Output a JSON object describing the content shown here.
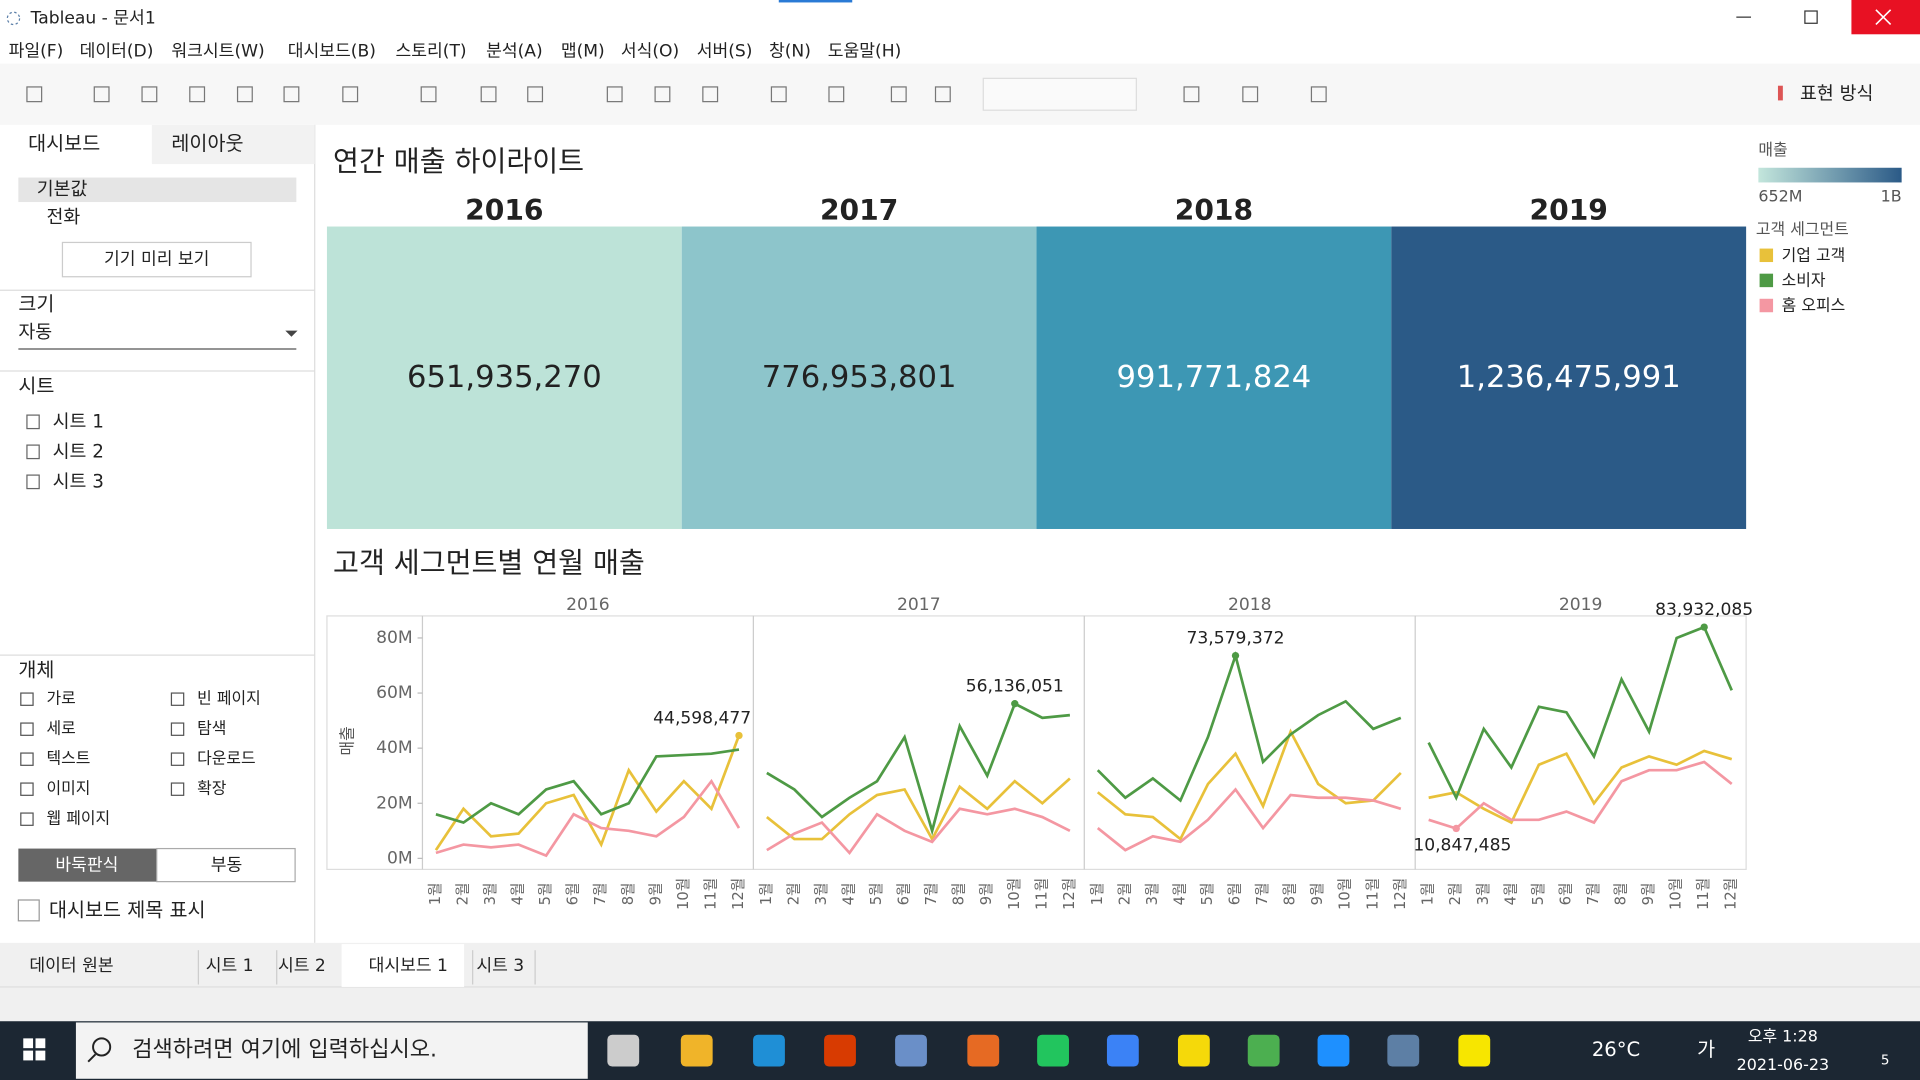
{
  "window": {
    "title": "Tableau - 문서1"
  },
  "menu": [
    "파일(F)",
    "데이터(D)",
    "워크시트(W)",
    "대시보드(B)",
    "스토리(T)",
    "분석(A)",
    "맵(M)",
    "서식(O)",
    "서버(S)",
    "창(N)",
    "도움말(H)"
  ],
  "toolbar": {
    "show_me": "표현 방식"
  },
  "side_panel": {
    "tabs": [
      "대시보드",
      "레이아웃"
    ],
    "devices": [
      "기본값",
      "전화"
    ],
    "preview_button": "기기 미리 보기",
    "size_title": "크기",
    "size_value": "자동",
    "sheets_title": "시트",
    "sheets": [
      "시트 1",
      "시트 2",
      "시트 3"
    ],
    "objects_title": "개체",
    "objects": [
      "가로",
      "빈 페이지",
      "세로",
      "탐색",
      "텍스트",
      "다운로드",
      "이미지",
      "확장",
      "웹 페이지"
    ],
    "layout_modes": [
      "바둑판식",
      "부동"
    ],
    "show_title": "대시보드 제목 표시"
  },
  "chart_data": [
    {
      "type": "highlight_table",
      "title": "연간 매출 하이라이트",
      "categories": [
        "2016",
        "2017",
        "2018",
        "2019"
      ],
      "values": [
        651935270,
        776953801,
        991771824,
        1236475991
      ],
      "value_labels": [
        "651,935,270",
        "776,953,801",
        "991,771,824",
        "1,236,475,991"
      ],
      "colors": [
        "#bde3d8",
        "#8dc5cb",
        "#3d97b4",
        "#2b5a87"
      ],
      "legend": {
        "title": "매출",
        "min_label": "652M",
        "max_label": "1B",
        "colors": [
          "#c3e6dc",
          "#2b5a87"
        ]
      }
    },
    {
      "type": "line",
      "title": "고객 세그먼트별 연월 매출",
      "legend_title": "고객 세그먼트",
      "y_label": "매출",
      "panels": [
        "2016",
        "2017",
        "2018",
        "2019"
      ],
      "categories": [
        "1월",
        "2월",
        "3월",
        "4월",
        "5월",
        "6월",
        "7월",
        "8월",
        "9월",
        "10월",
        "11월",
        "12월"
      ],
      "ylim": [
        -4,
        88
      ],
      "yticks": [
        {
          "value": 0,
          "label": "0M"
        },
        {
          "value": 20,
          "label": "20M"
        },
        {
          "value": 40,
          "label": "40M"
        },
        {
          "value": 60,
          "label": "60M"
        },
        {
          "value": 80,
          "label": "80M"
        }
      ],
      "series": [
        {
          "name": "기업 고객",
          "color": "#e8c13a",
          "values": [
            [
              3,
              18,
              8,
              9,
              20,
              23,
              5,
              32,
              17,
              28,
              18,
              44.598477
            ],
            [
              15,
              7,
              7,
              16,
              23,
              25,
              7,
              26,
              18,
              28,
              20,
              29
            ],
            [
              24,
              16,
              15,
              7,
              27,
              38,
              19,
              46,
              27,
              20,
              21,
              31
            ],
            [
              22,
              24,
              18,
              13,
              34,
              38,
              20,
              33,
              37,
              34,
              39,
              36
            ]
          ],
          "value_labels": [
            [
              null,
              null,
              null,
              null,
              null,
              null,
              null,
              null,
              null,
              null,
              null,
              "44,598,477"
            ],
            [
              null,
              null,
              null,
              null,
              null,
              null,
              null,
              null,
              null,
              null,
              null,
              null
            ],
            [
              null,
              null,
              null,
              null,
              null,
              null,
              null,
              null,
              null,
              null,
              null,
              null
            ],
            [
              null,
              null,
              null,
              null,
              null,
              null,
              null,
              null,
              null,
              null,
              null,
              null
            ]
          ]
        },
        {
          "name": "소비자",
          "color": "#4e9a45",
          "values": [
            [
              16,
              13,
              20,
              16,
              25,
              28,
              16,
              20,
              37,
              37.5,
              38,
              39.5
            ],
            [
              31,
              25,
              15,
              22,
              28,
              44,
              10,
              48,
              30,
              56.136051,
              51,
              52
            ],
            [
              32,
              22,
              29,
              21,
              44,
              73.579372,
              35,
              45,
              52,
              57,
              47,
              51
            ],
            [
              42,
              22,
              47,
              33,
              55,
              53,
              37,
              65,
              46,
              80,
              83.932085,
              61
            ]
          ],
          "value_labels": [
            [
              null,
              null,
              null,
              null,
              null,
              null,
              null,
              null,
              null,
              null,
              null,
              null
            ],
            [
              null,
              null,
              null,
              null,
              null,
              null,
              null,
              null,
              null,
              "56,136,051",
              null,
              null
            ],
            [
              null,
              null,
              null,
              null,
              null,
              "73,579,372",
              null,
              null,
              null,
              null,
              null,
              null
            ],
            [
              null,
              null,
              null,
              null,
              null,
              null,
              null,
              null,
              null,
              null,
              "83,932,085",
              null
            ]
          ]
        },
        {
          "name": "홈 오피스",
          "color": "#f497a2",
          "values": [
            [
              2,
              5,
              4,
              5,
              1,
              16,
              11,
              10,
              8,
              15,
              28,
              11
            ],
            [
              3,
              9,
              13,
              2,
              16,
              10,
              6,
              18,
              16,
              18,
              15,
              10
            ],
            [
              11,
              3,
              8,
              6,
              14,
              25,
              11,
              23,
              22,
              22,
              21,
              18
            ],
            [
              14,
              10.847485,
              20,
              14,
              14,
              17,
              13,
              28,
              32,
              32,
              35,
              27
            ]
          ],
          "value_labels": [
            [
              null,
              null,
              null,
              null,
              null,
              null,
              null,
              null,
              null,
              null,
              null,
              null
            ],
            [
              null,
              null,
              null,
              null,
              null,
              null,
              null,
              null,
              null,
              null,
              null,
              null
            ],
            [
              null,
              null,
              null,
              null,
              null,
              null,
              null,
              null,
              null,
              null,
              null,
              null
            ],
            [
              null,
              "10,847,485",
              null,
              null,
              null,
              null,
              null,
              null,
              null,
              null,
              null,
              null
            ]
          ]
        }
      ]
    }
  ],
  "bottom_tabs": [
    "데이터 원본",
    "시트 1",
    "시트 2",
    "대시보드 1",
    "시트 3"
  ],
  "taskbar": {
    "search": "검색하려면 여기에 입력하십시오.",
    "weather": "26°C",
    "ime": "가",
    "time": "오후 1:28",
    "date": "2021-06-23",
    "notifications": 5
  }
}
